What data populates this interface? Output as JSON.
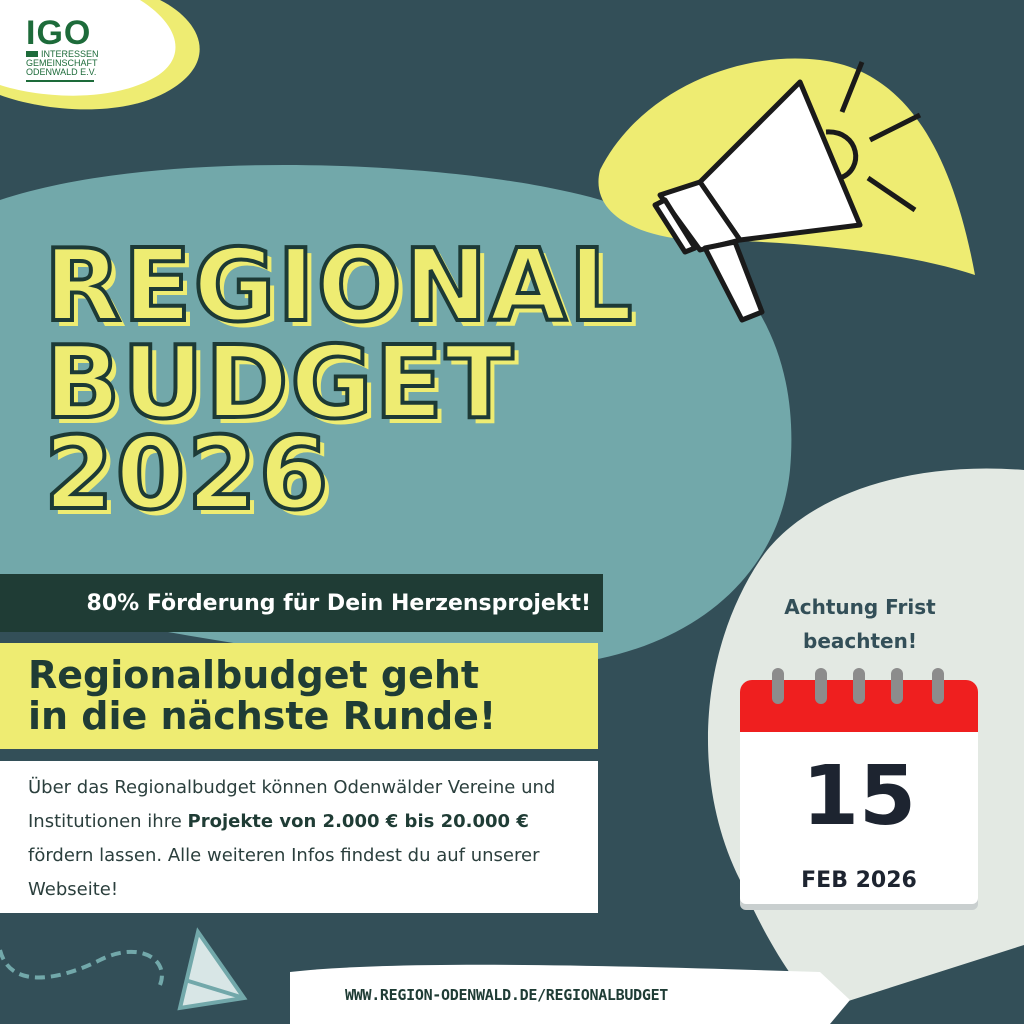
{
  "logo": {
    "name": "IGO",
    "subtitle": [
      "INTERESSEN",
      "GEMEINSCHAFT",
      "ODENWALD E.V."
    ]
  },
  "title": {
    "line1": "REGIONAL",
    "line2": "BUDGET",
    "line3": "2026"
  },
  "banner": {
    "funding": "80% Förderung für Dein Herzensprojekt!",
    "headline_line1": "Regionalbudget geht",
    "headline_line2": "in die nächste Runde!"
  },
  "description": {
    "part1": "Über das Regionalbudget können Odenwälder Vereine und Institutionen ihre ",
    "bold": "Projekte von 2.000 € bis 20.000 €",
    "part2": " fördern lassen. Alle weiteren Infos findest du auf unserer Webseite!"
  },
  "deadline": {
    "notice_line1": "Achtung Frist",
    "notice_line2": "beachten!",
    "day": "15",
    "month_year": "FEB 2026"
  },
  "footer": {
    "url": "WWW.REGION-ODENWALD.DE/REGIONALBUDGET"
  },
  "icons": [
    "megaphone-icon",
    "calendar-icon",
    "paper-plane-icon"
  ],
  "colors": {
    "background": "#334f58",
    "teal": "#72a8aa",
    "yellow": "#eeec72",
    "light": "#e3e9e3",
    "dark_green": "#1f3c35",
    "calendar_red": "#ef1f1f"
  }
}
